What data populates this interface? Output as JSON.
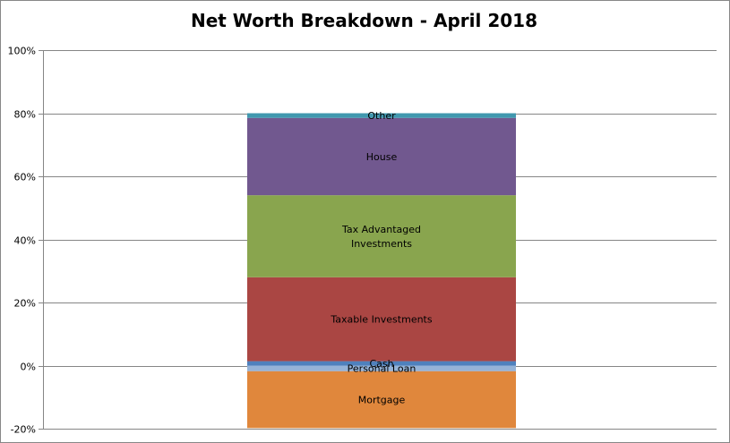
{
  "chart_data": {
    "type": "bar",
    "stacked": true,
    "title": "Net Worth Breakdown - April 2018",
    "xlabel": "",
    "ylabel": "",
    "ylim": [
      -20,
      100
    ],
    "yticks": [
      "-20%",
      "0%",
      "20%",
      "40%",
      "60%",
      "80%",
      "100%"
    ],
    "grid": true,
    "legend": "none",
    "series": [
      {
        "name": "Personal Loan",
        "value": -1.8,
        "color": "#95B3D7"
      },
      {
        "name": "Mortgage",
        "value": -18.0,
        "color": "#E0873C"
      },
      {
        "name": "Cash",
        "value": 1.4,
        "color": "#4F81BD"
      },
      {
        "name": "Taxable Investments",
        "value": 26.6,
        "color": "#AA4643"
      },
      {
        "name": "Tax Advantaged Investments",
        "value": 26.0,
        "color": "#89A54E"
      },
      {
        "name": "House",
        "value": 24.5,
        "color": "#71588F"
      },
      {
        "name": "Other",
        "value": 1.5,
        "color": "#4198AF"
      }
    ]
  }
}
